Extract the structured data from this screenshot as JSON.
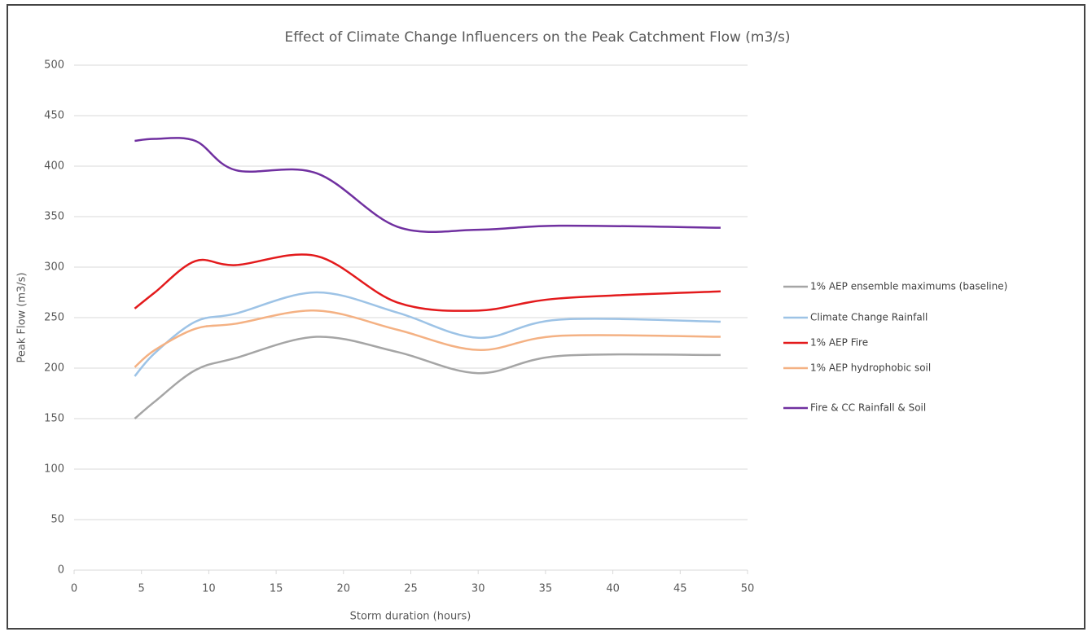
{
  "chart_data": {
    "type": "line",
    "title": "Effect of Climate Change Influencers on the Peak Catchment Flow (m3/s)",
    "x_label": "Storm duration (hours)",
    "y_label": "Peak Flow (m3/s)",
    "x": [
      4.5,
      6,
      9,
      12,
      18,
      24,
      30,
      36,
      48
    ],
    "series": [
      {
        "name": "1% AEP ensemble maximums (baseline)",
        "color": "#a5a5a5",
        "values": [
          150,
          167,
          198,
          210,
          231,
          216,
          195,
          212,
          213
        ]
      },
      {
        "name": "Climate Change Rainfall",
        "color": "#9dc3e6",
        "values": [
          192,
          215,
          246,
          254,
          275,
          255,
          230,
          248,
          246
        ]
      },
      {
        "name": "1%  AEP Fire",
        "color": "#e31a1c",
        "values": [
          259,
          275,
          306,
          302,
          311,
          265,
          257,
          269,
          276
        ]
      },
      {
        "name": "1% AEP hydrophobic soil",
        "color": "#f4b183",
        "values": [
          201,
          218,
          239,
          244,
          257,
          238,
          218,
          232,
          231
        ]
      },
      {
        "name": "Fire & CC Rainfall & Soil",
        "color": "#7030a0",
        "values": [
          425,
          427,
          425,
          396,
          393,
          340,
          337,
          341,
          339
        ]
      }
    ],
    "xlim": [
      0,
      50
    ],
    "xticks": [
      0,
      5,
      10,
      15,
      20,
      25,
      30,
      35,
      40,
      45,
      50
    ],
    "ylim": [
      0,
      500
    ],
    "yticks": [
      0,
      50,
      100,
      150,
      200,
      250,
      300,
      350,
      400,
      450,
      500
    ],
    "grid": true,
    "legend": "right"
  }
}
